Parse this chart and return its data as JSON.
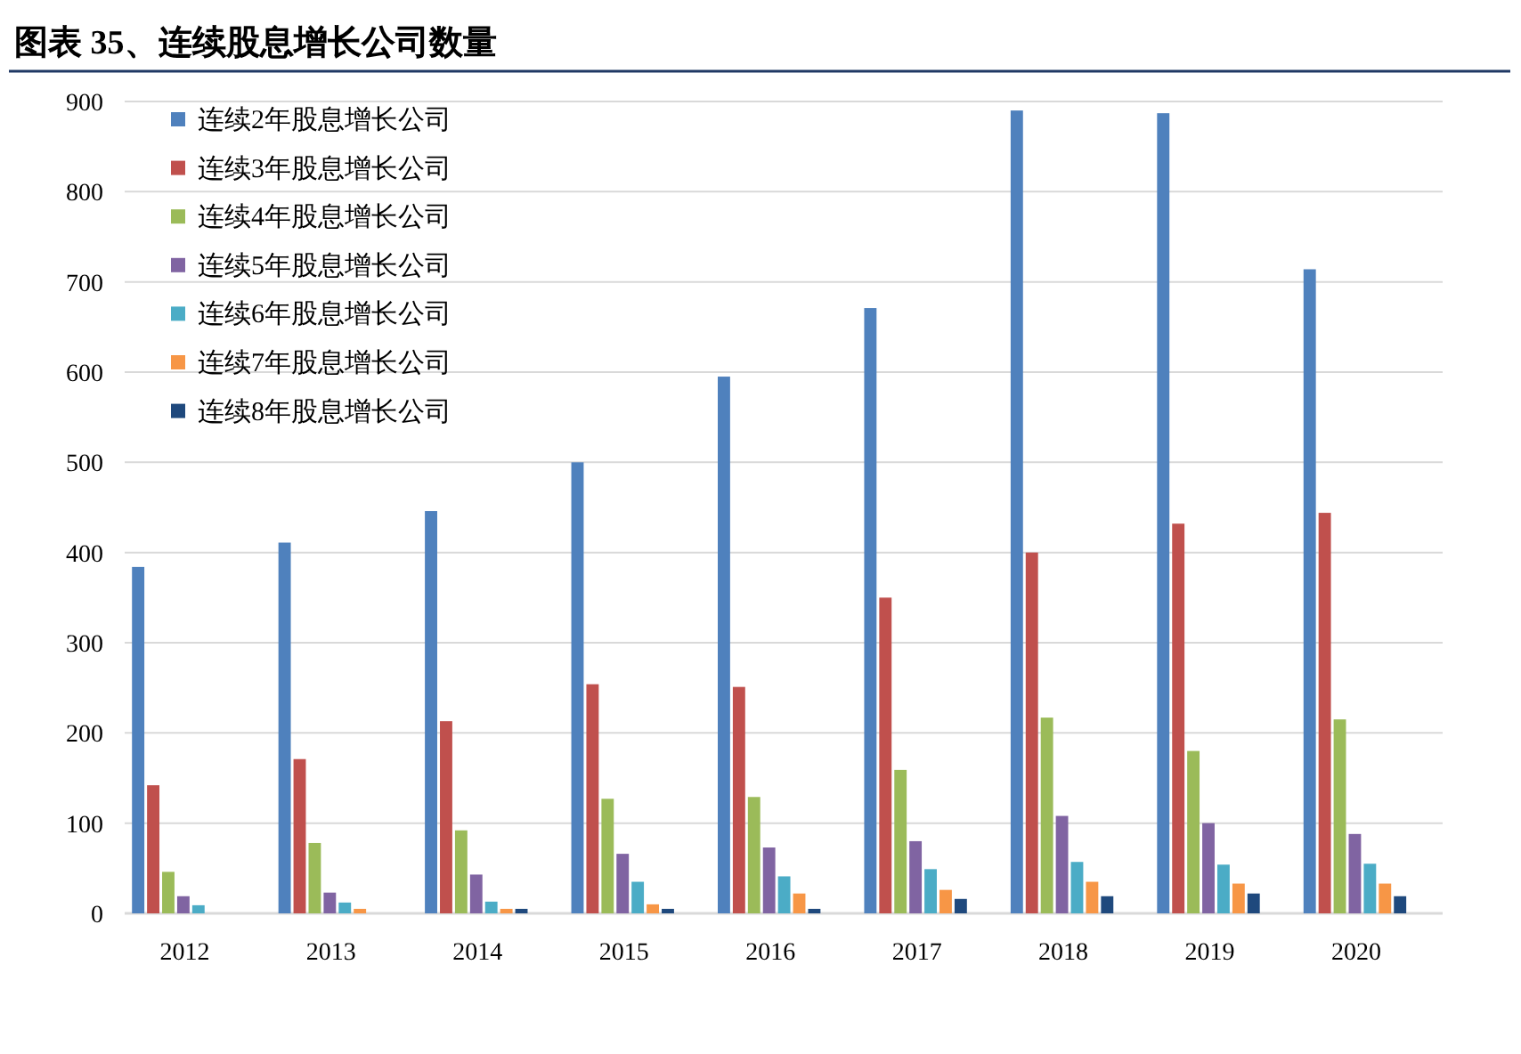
{
  "chart_data": {
    "type": "bar",
    "title": "图表 35、连续股息增长公司数量",
    "categories": [
      "2012",
      "2013",
      "2014",
      "2015",
      "2016",
      "2017",
      "2018",
      "2019",
      "2020"
    ],
    "series": [
      {
        "name": "连续2年股息增长公司",
        "color": "#4f81bd",
        "values": [
          384,
          411,
          446,
          500,
          595,
          671,
          890,
          887,
          714
        ]
      },
      {
        "name": "连续3年股息增长公司",
        "color": "#c0504d",
        "values": [
          142,
          171,
          213,
          254,
          251,
          350,
          400,
          432,
          444
        ]
      },
      {
        "name": "连续4年股息增长公司",
        "color": "#9bbb59",
        "values": [
          46,
          78,
          92,
          127,
          129,
          159,
          217,
          180,
          215
        ]
      },
      {
        "name": "连续5年股息增长公司",
        "color": "#8064a2",
        "values": [
          19,
          23,
          43,
          66,
          73,
          80,
          108,
          100,
          88
        ]
      },
      {
        "name": "连续6年股息增长公司",
        "color": "#4bacc6",
        "values": [
          9,
          12,
          13,
          35,
          41,
          49,
          57,
          54,
          55
        ]
      },
      {
        "name": "连续7年股息增长公司",
        "color": "#f79646",
        "values": [
          0,
          5,
          5,
          10,
          22,
          26,
          35,
          33,
          33
        ]
      },
      {
        "name": "连续8年股息增长公司",
        "color": "#1f497d",
        "values": [
          0,
          0,
          5,
          5,
          5,
          16,
          19,
          22,
          19
        ]
      }
    ],
    "ylim": [
      0,
      900
    ],
    "yticks": [
      0,
      100,
      200,
      300,
      400,
      500,
      600,
      700,
      800,
      900
    ],
    "grid": "y",
    "legend": "top left"
  }
}
